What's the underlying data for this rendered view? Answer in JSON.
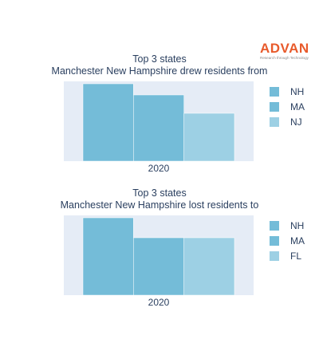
{
  "logo": {
    "word": "ADVAN",
    "tagline": "Research through Technology"
  },
  "colors": {
    "plot_bg": "#e5ecf6",
    "series": [
      "#74bcd8",
      "#74bcd8",
      "#9dd0e4"
    ]
  },
  "chart_data": [
    {
      "type": "bar",
      "title_lines": [
        "Top 3 states",
        "Manchester New Hampshire drew residents from"
      ],
      "categories": [
        "2020"
      ],
      "series": [
        {
          "name": "NH",
          "values": [
            0.97
          ]
        },
        {
          "name": "MA",
          "values": [
            0.83
          ]
        },
        {
          "name": "NJ",
          "values": [
            0.6
          ]
        }
      ],
      "ylim": [
        0,
        1
      ],
      "grid": false,
      "legend_position": "right"
    },
    {
      "type": "bar",
      "title_lines": [
        "Top 3 states",
        "Manchester New Hampshire lost residents to"
      ],
      "categories": [
        "2020"
      ],
      "series": [
        {
          "name": "NH",
          "values": [
            0.97
          ]
        },
        {
          "name": "MA",
          "values": [
            0.72
          ]
        },
        {
          "name": "FL",
          "values": [
            0.72
          ]
        }
      ],
      "ylim": [
        0,
        1
      ],
      "grid": false,
      "legend_position": "right"
    }
  ]
}
